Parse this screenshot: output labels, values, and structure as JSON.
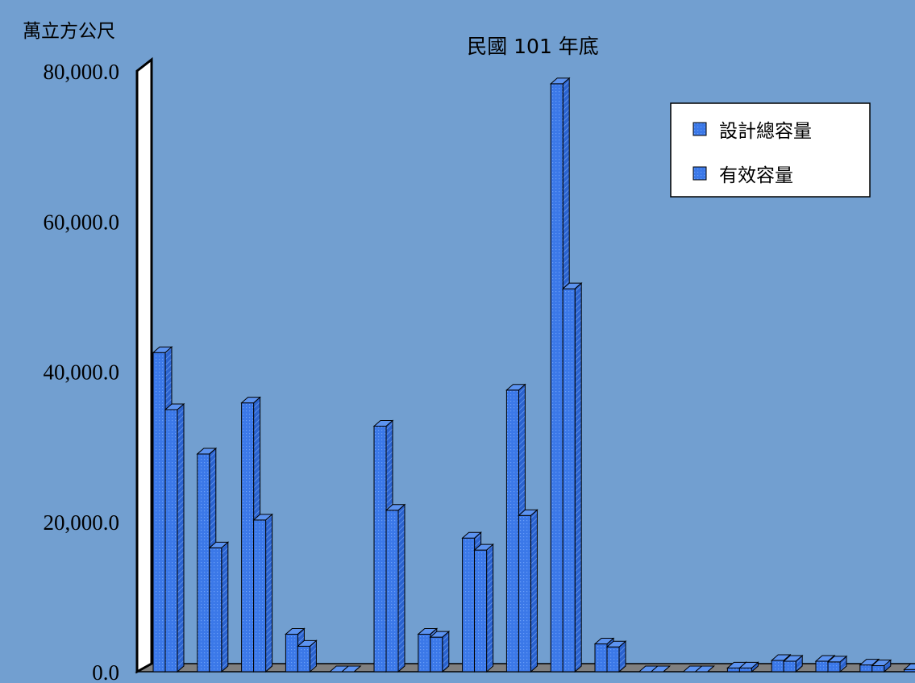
{
  "chart_data": {
    "type": "bar",
    "title": "民國 101 年底",
    "ylabel": "萬立方公尺",
    "ylim": [
      0,
      80000
    ],
    "yticks": [
      "0.0",
      "20,000.0",
      "40,000.0",
      "60,000.0",
      "80,000.0"
    ],
    "ytick_values": [
      0,
      20000,
      40000,
      60000,
      80000
    ],
    "legend_position": "top-right",
    "grid": false,
    "categories": [
      "",
      "",
      "",
      "",
      "",
      "",
      "",
      "",
      "",
      "",
      "",
      "",
      "",
      "",
      "",
      "",
      "",
      ""
    ],
    "series": [
      {
        "name": "設計總容量",
        "color": "#3b78e8",
        "values": [
          42500,
          29000,
          35800,
          5000,
          0,
          32700,
          5000,
          17800,
          37500,
          78300,
          3700,
          0,
          0,
          500,
          1500,
          1400,
          900,
          300
        ]
      },
      {
        "name": "有效容量",
        "color": "#3b78e8",
        "values": [
          34900,
          16500,
          20200,
          3400,
          0,
          21500,
          4600,
          16200,
          20800,
          51000,
          3300,
          0,
          0,
          500,
          1400,
          1300,
          800,
          200
        ]
      }
    ],
    "colors": {
      "plot_background": "#729fd0",
      "floor": "#808080",
      "bar_face": "#3b78e8",
      "bar_side": "#2b63cf",
      "bar_top": "#5c93f0",
      "legend_background": "#ffffff"
    }
  }
}
